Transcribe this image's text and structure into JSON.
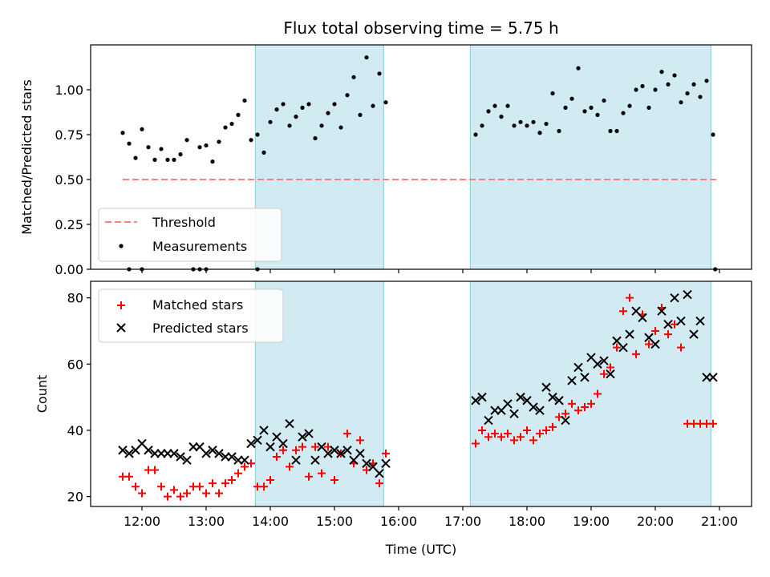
{
  "chart_data": [
    {
      "type": "scatter",
      "title": "Flux total observing time = 5.75 h",
      "xlabel": "",
      "ylabel": "Matched/Predicted stars",
      "ylim": [
        0,
        1.25
      ],
      "xlim": [
        "11:12",
        "21:30"
      ],
      "y_ticks": [
        "0.00",
        "0.25",
        "0.50",
        "0.75",
        "1.00"
      ],
      "shaded_intervals": [
        [
          "13:46",
          "15:46"
        ],
        [
          "17:07",
          "20:52"
        ]
      ],
      "shade_color": "#add8e6",
      "legend_position": "lower-left",
      "series": [
        {
          "name": "Threshold",
          "style": "dashed-line",
          "color": "#ff7f7f",
          "x": [
            "11:42",
            "20:57"
          ],
          "y": [
            0.5,
            0.5
          ]
        },
        {
          "name": "Measurements",
          "style": "dot",
          "color": "#000000",
          "x": [
            "11:42",
            "11:48",
            "11:54",
            "12:00",
            "12:06",
            "12:12",
            "12:18",
            "12:24",
            "12:30",
            "12:36",
            "12:42",
            "12:48",
            "12:54",
            "13:00",
            "13:06",
            "13:12",
            "13:18",
            "13:24",
            "13:30",
            "13:36",
            "13:42",
            "13:48",
            "13:54",
            "14:00",
            "14:06",
            "14:12",
            "14:18",
            "14:24",
            "14:30",
            "14:36",
            "14:42",
            "14:48",
            "14:54",
            "15:00",
            "15:06",
            "15:12",
            "15:18",
            "15:24",
            "15:30",
            "15:36",
            "15:42",
            "15:48",
            "17:12",
            "17:18",
            "17:24",
            "17:30",
            "17:36",
            "17:42",
            "17:48",
            "17:54",
            "18:00",
            "18:06",
            "18:12",
            "18:18",
            "18:24",
            "18:30",
            "18:36",
            "18:42",
            "18:48",
            "18:54",
            "19:00",
            "19:06",
            "19:12",
            "19:18",
            "19:24",
            "19:30",
            "19:36",
            "19:42",
            "19:48",
            "19:54",
            "20:00",
            "20:06",
            "20:12",
            "20:18",
            "20:24",
            "20:30",
            "20:36",
            "20:42",
            "20:48",
            "20:54"
          ],
          "y": [
            0.76,
            0.7,
            0.62,
            0.78,
            0.68,
            0.61,
            0.67,
            0.61,
            0.61,
            0.64,
            0.72,
            0.0,
            0.68,
            0.69,
            0.6,
            0.71,
            0.79,
            0.81,
            0.86,
            0.94,
            0.72,
            0.75,
            0.65,
            0.82,
            0.89,
            0.92,
            0.8,
            0.85,
            0.9,
            0.92,
            0.73,
            0.8,
            0.87,
            0.92,
            0.79,
            0.97,
            1.07,
            0.86,
            1.18,
            0.91,
            1.09,
            0.93,
            0.75,
            0.8,
            0.88,
            0.91,
            0.85,
            0.91,
            0.8,
            0.82,
            0.8,
            0.82,
            0.76,
            0.81,
            0.98,
            0.77,
            0.9,
            0.95,
            1.12,
            0.88,
            0.9,
            0.86,
            0.94,
            0.77,
            0.77,
            0.87,
            0.91,
            1.0,
            1.02,
            0.9,
            1.0,
            1.1,
            1.03,
            1.08,
            0.93,
            0.98,
            1.03,
            0.96,
            1.05,
            0.75
          ],
          "extra_points_at_zero": [
            "11:48",
            "12:00",
            "12:54",
            "13:00",
            "13:48",
            "20:56"
          ]
        }
      ]
    },
    {
      "type": "scatter",
      "title": "",
      "xlabel": "Time (UTC)",
      "ylabel": "Count",
      "ylim": [
        17,
        85
      ],
      "xlim": [
        "11:12",
        "21:30"
      ],
      "x_ticks": [
        "12:00",
        "13:00",
        "14:00",
        "15:00",
        "16:00",
        "17:00",
        "18:00",
        "19:00",
        "20:00",
        "21:00"
      ],
      "y_ticks": [
        "20",
        "40",
        "60",
        "80"
      ],
      "shaded_intervals": [
        [
          "13:46",
          "15:46"
        ],
        [
          "17:07",
          "20:52"
        ]
      ],
      "shade_color": "#add8e6",
      "legend_position": "upper-left",
      "series": [
        {
          "name": "Matched stars",
          "style": "plus",
          "color": "#ff0000",
          "x": [
            "11:42",
            "11:48",
            "11:54",
            "12:00",
            "12:06",
            "12:12",
            "12:18",
            "12:24",
            "12:30",
            "12:36",
            "12:42",
            "12:48",
            "12:54",
            "13:00",
            "13:06",
            "13:12",
            "13:18",
            "13:24",
            "13:30",
            "13:36",
            "13:42",
            "13:48",
            "13:54",
            "14:00",
            "14:06",
            "14:12",
            "14:18",
            "14:24",
            "14:30",
            "14:36",
            "14:42",
            "14:48",
            "14:54",
            "15:00",
            "15:06",
            "15:12",
            "15:18",
            "15:24",
            "15:30",
            "15:36",
            "15:42",
            "15:48",
            "17:12",
            "17:18",
            "17:24",
            "17:30",
            "17:36",
            "17:42",
            "17:48",
            "17:54",
            "18:00",
            "18:06",
            "18:12",
            "18:18",
            "18:24",
            "18:30",
            "18:36",
            "18:42",
            "18:48",
            "18:54",
            "19:00",
            "19:06",
            "19:12",
            "19:18",
            "19:24",
            "19:30",
            "19:36",
            "19:42",
            "19:48",
            "19:54",
            "20:00",
            "20:06",
            "20:12",
            "20:18",
            "20:24",
            "20:30",
            "20:36",
            "20:42",
            "20:48",
            "20:54"
          ],
          "y": [
            26,
            26,
            23,
            21,
            28,
            28,
            23,
            20,
            22,
            20,
            21,
            23,
            23,
            21,
            24,
            21,
            24,
            25,
            27,
            29,
            30,
            23,
            23,
            25,
            32,
            34,
            29,
            34,
            35,
            26,
            35,
            27,
            35,
            25,
            33,
            39,
            30,
            37,
            28,
            30,
            24,
            33,
            36,
            40,
            38,
            39,
            38,
            39,
            37,
            38,
            40,
            37,
            39,
            40,
            41,
            44,
            45,
            48,
            46,
            47,
            48,
            51,
            57,
            59,
            65,
            76,
            80,
            63,
            75,
            66,
            70,
            77,
            69,
            72,
            65,
            42,
            42,
            42,
            42,
            42
          ]
        },
        {
          "name": "Predicted stars",
          "style": "x",
          "color": "#000000",
          "x": [
            "11:42",
            "11:48",
            "11:54",
            "12:00",
            "12:06",
            "12:12",
            "12:18",
            "12:24",
            "12:30",
            "12:36",
            "12:42",
            "12:48",
            "12:54",
            "13:00",
            "13:06",
            "13:12",
            "13:18",
            "13:24",
            "13:30",
            "13:36",
            "13:42",
            "13:48",
            "13:54",
            "14:00",
            "14:06",
            "14:12",
            "14:18",
            "14:24",
            "14:30",
            "14:36",
            "14:42",
            "14:48",
            "14:54",
            "15:00",
            "15:06",
            "15:12",
            "15:18",
            "15:24",
            "15:30",
            "15:36",
            "15:42",
            "15:48",
            "17:12",
            "17:18",
            "17:24",
            "17:30",
            "17:36",
            "17:42",
            "17:48",
            "17:54",
            "18:00",
            "18:06",
            "18:12",
            "18:18",
            "18:24",
            "18:30",
            "18:36",
            "18:42",
            "18:48",
            "18:54",
            "19:00",
            "19:06",
            "19:12",
            "19:18",
            "19:24",
            "19:30",
            "19:36",
            "19:42",
            "19:48",
            "19:54",
            "20:00",
            "20:06",
            "20:12",
            "20:18",
            "20:24",
            "20:30",
            "20:36",
            "20:42",
            "20:48",
            "20:54"
          ],
          "y": [
            34,
            33,
            34,
            36,
            34,
            33,
            33,
            33,
            33,
            32,
            31,
            35,
            35,
            33,
            34,
            33,
            32,
            32,
            31,
            31,
            36,
            37,
            40,
            35,
            38,
            36,
            42,
            31,
            38,
            39,
            31,
            35,
            33,
            34,
            33,
            34,
            31,
            33,
            30,
            29,
            27,
            30,
            49,
            50,
            43,
            46,
            46,
            48,
            45,
            50,
            49,
            47,
            46,
            53,
            50,
            49,
            43,
            55,
            59,
            56,
            62,
            60,
            61,
            57,
            67,
            65,
            69,
            76,
            74,
            68,
            66,
            76,
            72,
            80,
            73,
            81,
            69,
            73,
            56,
            56
          ]
        }
      ]
    }
  ]
}
